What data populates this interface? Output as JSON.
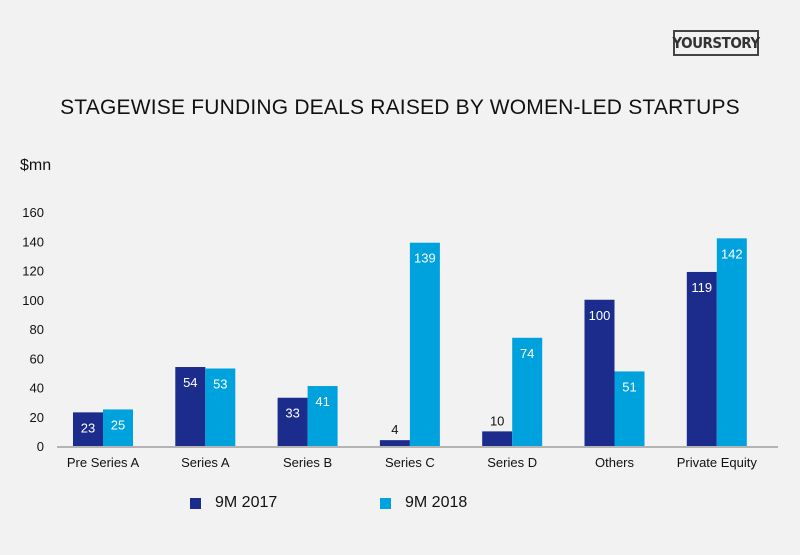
{
  "logo": "YOURSTORY",
  "chart_data": {
    "type": "bar",
    "title": "STAGEWISE FUNDING DEALS RAISED BY WOMEN-LED STARTUPS",
    "ylabel": "$mn",
    "xlabel": "",
    "ylim": [
      0,
      160
    ],
    "yticks": [
      0,
      20,
      40,
      60,
      80,
      100,
      120,
      140,
      160
    ],
    "grid": false,
    "legend": "bottom",
    "categories": [
      "Pre Series A",
      "Series A",
      "Series B",
      "Series C",
      "Series D",
      "Others",
      "Private Equity"
    ],
    "series": [
      {
        "name": "9M 2017",
        "color": "#1b2c8c",
        "values": [
          23,
          54,
          33,
          4,
          10,
          100,
          119
        ]
      },
      {
        "name": "9M 2018",
        "color": "#00a2de",
        "values": [
          25,
          53,
          41,
          139,
          74,
          51,
          142
        ]
      }
    ]
  }
}
